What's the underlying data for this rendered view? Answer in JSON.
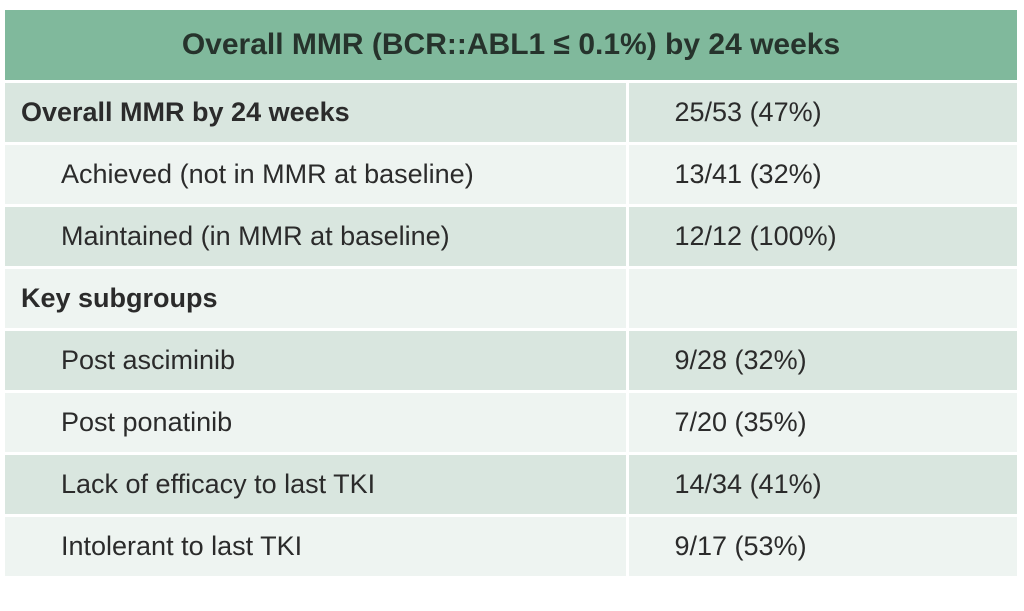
{
  "table": {
    "title": "Overall MMR (BCR::ABL1 ≤ 0.1%) by 24 weeks",
    "rows": [
      {
        "label": "Overall MMR by 24 weeks",
        "value": "25/53 (47%)"
      },
      {
        "label": "Achieved (not in MMR at baseline)",
        "value": "13/41 (32%)"
      },
      {
        "label": "Maintained (in MMR at baseline)",
        "value": "12/12 (100%)"
      },
      {
        "label": "Key subgroups",
        "value": ""
      },
      {
        "label": "Post asciminib",
        "value": "9/28 (32%)"
      },
      {
        "label": "Post ponatinib",
        "value": "7/20 (35%)"
      },
      {
        "label": "Lack of efficacy to last TKI",
        "value": "14/34 (41%)"
      },
      {
        "label": "Intolerant to last TKI",
        "value": "9/17 (53%)"
      }
    ],
    "colors": {
      "header": "#80b99c",
      "row_shade": "#d9e6df",
      "row_light": "#eef4f1"
    }
  }
}
